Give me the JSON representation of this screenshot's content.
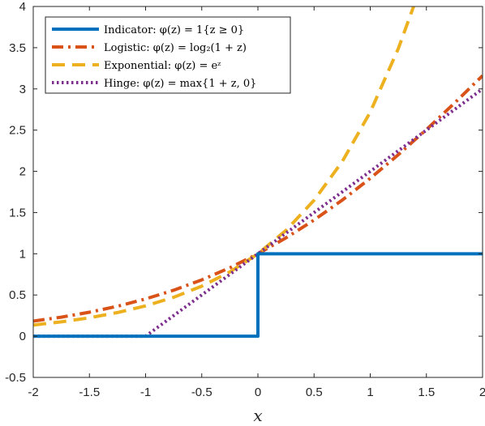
{
  "chart_data": {
    "type": "line",
    "title": "",
    "xlabel": "x",
    "ylabel": "",
    "xlim": [
      -2,
      2
    ],
    "ylim": [
      -0.5,
      4
    ],
    "xticks": [
      -2,
      -1.5,
      -1,
      -0.5,
      0,
      0.5,
      1,
      1.5,
      2
    ],
    "xtick_labels": [
      "-2",
      "-1.5",
      "-1",
      "-0.5",
      "0",
      "0.5",
      "1",
      "1.5",
      "2"
    ],
    "yticks": [
      -0.5,
      0,
      0.5,
      1,
      1.5,
      2,
      2.5,
      3,
      3.5,
      4
    ],
    "ytick_labels": [
      "-0.5",
      "0",
      "0.5",
      "1",
      "1.5",
      "2",
      "2.5",
      "3",
      "3.5",
      "4"
    ],
    "grid": false,
    "legend_position": "top-left",
    "series": [
      {
        "name": "Indicator: φ(z) = 1{z ≥ 0}",
        "color": "#0072BD",
        "style": "solid",
        "x": [
          -2,
          0,
          0,
          2
        ],
        "y": [
          0,
          0,
          1,
          1
        ]
      },
      {
        "name": "Logistic: φ(z) = log₂(1 + z)",
        "color": "#D95319",
        "style": "dashdot",
        "x": [
          -2,
          -1.75,
          -1.5,
          -1.25,
          -1,
          -0.75,
          -0.5,
          -0.25,
          0,
          0.25,
          0.5,
          0.75,
          1,
          1.25,
          1.5,
          1.75,
          2
        ],
        "y": [
          0.183,
          0.231,
          0.291,
          0.363,
          0.452,
          0.558,
          0.683,
          0.83,
          1.0,
          1.193,
          1.409,
          1.65,
          1.915,
          2.202,
          2.507,
          2.828,
          3.161
        ]
      },
      {
        "name": "Exponential: φ(z) = eᶻ",
        "color": "#EDB120",
        "style": "dashed",
        "x": [
          -2,
          -1.75,
          -1.5,
          -1.25,
          -1,
          -0.75,
          -0.5,
          -0.25,
          0,
          0.25,
          0.5,
          0.75,
          1,
          1.25,
          1.386
        ],
        "y": [
          0.135,
          0.174,
          0.223,
          0.287,
          0.368,
          0.472,
          0.607,
          0.779,
          1.0,
          1.284,
          1.649,
          2.117,
          2.718,
          3.49,
          4.0
        ]
      },
      {
        "name": "Hinge: φ(z) = max{1 + z, 0}",
        "color": "#7E2F8E",
        "style": "dotted",
        "x": [
          -2,
          -1,
          2
        ],
        "y": [
          0,
          0,
          3
        ]
      }
    ]
  }
}
